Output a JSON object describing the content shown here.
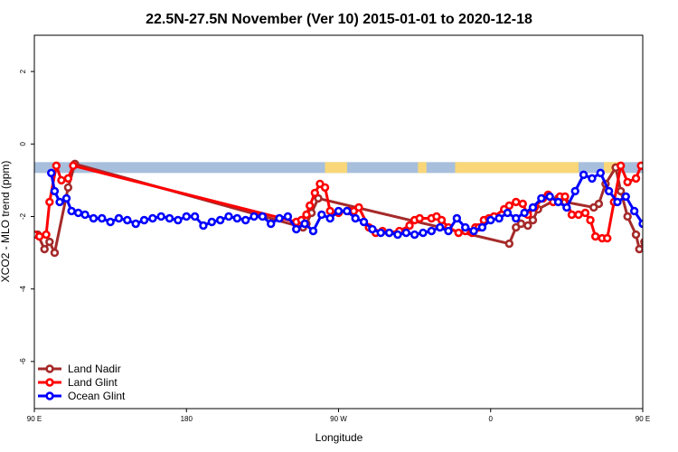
{
  "chart_data": {
    "type": "line",
    "title": "22.5N-27.5N November (Ver 10)   2015-01-01 to 2020-12-18",
    "xlabel": "Longitude",
    "ylabel": "XCO2 - MLO trend (ppm)",
    "xlim": [
      90,
      450
    ],
    "ylim": [
      -7.3,
      3.0
    ],
    "x_ticks": [
      {
        "value": 90,
        "label": "90 E"
      },
      {
        "value": 180,
        "label": "180"
      },
      {
        "value": 270,
        "label": "90 W"
      },
      {
        "value": 360,
        "label": "0"
      },
      {
        "value": 450,
        "label": "90 E"
      },
      {
        "value": 540,
        "label": "180"
      }
    ],
    "x_ticks_visible": [
      "90 E",
      "180",
      "90 W",
      "0",
      "90 E",
      "180"
    ],
    "y_ticks": [
      2,
      0,
      -2,
      -4,
      -6
    ],
    "legend_position": "bottom-left",
    "land_ocean_band": {
      "y_range": [
        -0.5,
        -0.8
      ],
      "ocean_color": "#a7bfdc",
      "land_color": "#f9d778",
      "land_segments": [
        [
          262,
          275
        ],
        [
          317,
          322
        ],
        [
          339,
          412
        ],
        [
          427,
          437
        ]
      ]
    },
    "series": [
      {
        "name": "Land Nadir",
        "color": "#a52a2a",
        "x": [
          92,
          96,
          99,
          102,
          110,
          114,
          249,
          251,
          254,
          258,
          371,
          375,
          378,
          382,
          385,
          388,
          400,
          404,
          421,
          424,
          428,
          434,
          437,
          441,
          446,
          448,
          451
        ],
        "y": [
          -2.5,
          -2.9,
          -2.7,
          -3.0,
          -1.2,
          -0.55,
          -2.3,
          -2.2,
          -1.9,
          -1.5,
          -2.75,
          -2.3,
          -2.2,
          -2.25,
          -2.1,
          -1.8,
          -1.5,
          -1.6,
          -1.75,
          -1.65,
          -1.1,
          -0.65,
          -1.3,
          -2.0,
          -2.5,
          -2.9,
          -2.7
        ]
      },
      {
        "name": "Land Glint",
        "color": "#ff0000",
        "x": [
          90,
          93,
          97,
          99,
          103,
          106,
          110,
          113,
          245,
          248,
          251,
          253,
          256,
          259,
          262,
          265,
          270,
          276,
          279,
          282,
          288,
          292,
          296,
          300,
          306,
          312,
          315,
          318,
          325,
          328,
          331,
          335,
          341,
          345,
          349,
          351,
          353,
          356,
          359,
          362,
          368,
          371,
          375,
          379,
          382,
          386,
          391,
          394,
          397,
          401,
          404,
          408,
          412,
          416,
          419,
          422,
          426,
          429,
          433,
          437,
          441,
          446,
          449
        ],
        "y": [
          -2.5,
          -2.55,
          -2.5,
          -1.6,
          -0.6,
          -1.0,
          -0.95,
          -0.6,
          -2.15,
          -2.1,
          -1.95,
          -1.7,
          -1.35,
          -1.1,
          -1.2,
          -1.85,
          -1.9,
          -1.85,
          -1.85,
          -1.75,
          -2.3,
          -2.45,
          -2.4,
          -2.45,
          -2.4,
          -2.25,
          -2.1,
          -2.05,
          -2.05,
          -2.0,
          -2.1,
          -2.3,
          -2.45,
          -2.4,
          -2.45,
          -2.3,
          -2.3,
          -2.1,
          -2.05,
          -2.0,
          -1.8,
          -1.7,
          -1.6,
          -1.65,
          -1.95,
          -1.75,
          -1.5,
          -1.4,
          -1.6,
          -1.45,
          -1.45,
          -1.95,
          -1.95,
          -1.9,
          -2.1,
          -2.55,
          -2.6,
          -2.6,
          -1.6,
          -0.6,
          -1.05,
          -0.95,
          -0.6
        ]
      },
      {
        "name": "Ocean Glint",
        "color": "#0000ff",
        "x": [
          100,
          102,
          105,
          109,
          112,
          116,
          120,
          125,
          130,
          135,
          140,
          145,
          150,
          155,
          160,
          165,
          170,
          175,
          180,
          185,
          190,
          195,
          200,
          205,
          210,
          215,
          220,
          225,
          230,
          235,
          240,
          245,
          250,
          255,
          260,
          265,
          270,
          275,
          280,
          285,
          290,
          295,
          300,
          305,
          310,
          315,
          320,
          325,
          330,
          335,
          340,
          345,
          350,
          355,
          360,
          365,
          370,
          375,
          380,
          385,
          390,
          395,
          400,
          405,
          410,
          415,
          420,
          425,
          430,
          435,
          440,
          445,
          450
        ],
        "y": [
          -0.8,
          -1.3,
          -1.6,
          -1.5,
          -1.85,
          -1.9,
          -1.95,
          -2.05,
          -2.05,
          -2.15,
          -2.05,
          -2.1,
          -2.2,
          -2.1,
          -2.05,
          -2.0,
          -2.05,
          -2.1,
          -2.0,
          -2.0,
          -2.25,
          -2.15,
          -2.1,
          -2.0,
          -2.05,
          -2.1,
          -2.0,
          -2.0,
          -2.2,
          -2.05,
          -2.0,
          -2.35,
          -2.2,
          -2.4,
          -1.95,
          -2.05,
          -1.85,
          -1.85,
          -2.05,
          -2.15,
          -2.35,
          -2.45,
          -2.45,
          -2.5,
          -2.45,
          -2.5,
          -2.45,
          -2.4,
          -2.3,
          -2.4,
          -2.05,
          -2.3,
          -2.4,
          -2.3,
          -2.1,
          -2.05,
          -1.9,
          -2.05,
          -1.9,
          -1.75,
          -1.5,
          -1.45,
          -1.6,
          -1.75,
          -1.3,
          -0.85,
          -0.95,
          -0.8,
          -1.3,
          -1.6,
          -1.45,
          -1.85,
          -2.2
        ]
      }
    ]
  }
}
